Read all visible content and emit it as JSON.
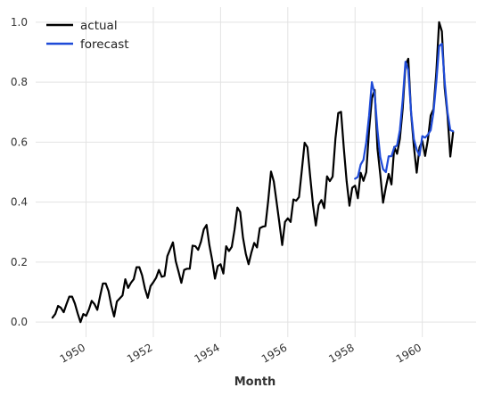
{
  "chart_data": {
    "type": "line",
    "title": "",
    "xlabel": "Month",
    "ylabel": "",
    "xlim": [
      1948.5,
      1961.6
    ],
    "ylim": [
      -0.05,
      1.05
    ],
    "grid": true,
    "legend_position": "top-left",
    "x_ticks": [
      {
        "value": 1950,
        "label": "1950"
      },
      {
        "value": 1952,
        "label": "1952"
      },
      {
        "value": 1954,
        "label": "1954"
      },
      {
        "value": 1956,
        "label": "1956"
      },
      {
        "value": 1958,
        "label": "1958"
      },
      {
        "value": 1960,
        "label": "1960"
      }
    ],
    "y_ticks": [
      {
        "value": 0.0,
        "label": "0.0"
      },
      {
        "value": 0.2,
        "label": "0.2"
      },
      {
        "value": 0.4,
        "label": "0.4"
      },
      {
        "value": 0.6,
        "label": "0.6"
      },
      {
        "value": 0.8,
        "label": "0.8"
      },
      {
        "value": 1.0,
        "label": "1.0"
      }
    ],
    "series": [
      {
        "name": "actual",
        "color": "#000000",
        "x_start": 1949.0,
        "x_step_months": 1,
        "values": [
          0.015,
          0.027,
          0.054,
          0.048,
          0.033,
          0.06,
          0.085,
          0.085,
          0.062,
          0.029,
          0.0,
          0.027,
          0.021,
          0.042,
          0.071,
          0.06,
          0.041,
          0.087,
          0.129,
          0.129,
          0.104,
          0.056,
          0.019,
          0.069,
          0.079,
          0.089,
          0.143,
          0.114,
          0.131,
          0.143,
          0.183,
          0.183,
          0.156,
          0.112,
          0.081,
          0.12,
          0.133,
          0.148,
          0.174,
          0.151,
          0.154,
          0.22,
          0.243,
          0.266,
          0.203,
          0.168,
          0.131,
          0.174,
          0.178,
          0.178,
          0.255,
          0.253,
          0.241,
          0.268,
          0.309,
          0.324,
          0.257,
          0.207,
          0.145,
          0.187,
          0.193,
          0.162,
          0.253,
          0.237,
          0.251,
          0.309,
          0.382,
          0.367,
          0.282,
          0.228,
          0.193,
          0.232,
          0.264,
          0.249,
          0.313,
          0.318,
          0.32,
          0.405,
          0.502,
          0.469,
          0.4,
          0.33,
          0.257,
          0.334,
          0.346,
          0.334,
          0.409,
          0.405,
          0.417,
          0.506,
          0.598,
          0.583,
          0.484,
          0.39,
          0.322,
          0.39,
          0.407,
          0.38,
          0.486,
          0.47,
          0.485,
          0.612,
          0.697,
          0.701,
          0.579,
          0.469,
          0.388,
          0.448,
          0.455,
          0.413,
          0.498,
          0.471,
          0.5,
          0.639,
          0.746,
          0.774,
          0.579,
          0.492,
          0.398,
          0.45,
          0.494,
          0.459,
          0.584,
          0.561,
          0.611,
          0.711,
          0.857,
          0.878,
          0.697,
          0.585,
          0.498,
          0.582,
          0.604,
          0.554,
          0.608,
          0.689,
          0.71,
          0.832,
          1.0,
          0.969,
          0.78,
          0.69,
          0.552,
          0.633
        ]
      },
      {
        "name": "forecast",
        "color": "#1f4bd8",
        "x_start": 1958.0,
        "x_step_months": 1,
        "values": [
          0.478,
          0.484,
          0.525,
          0.541,
          0.6,
          0.688,
          0.8,
          0.76,
          0.64,
          0.55,
          0.51,
          0.5,
          0.553,
          0.553,
          0.583,
          0.589,
          0.64,
          0.74,
          0.868,
          0.84,
          0.7,
          0.61,
          0.575,
          0.555,
          0.62,
          0.615,
          0.625,
          0.64,
          0.7,
          0.8,
          0.92,
          0.928,
          0.8,
          0.7,
          0.64,
          0.636
        ]
      }
    ]
  }
}
